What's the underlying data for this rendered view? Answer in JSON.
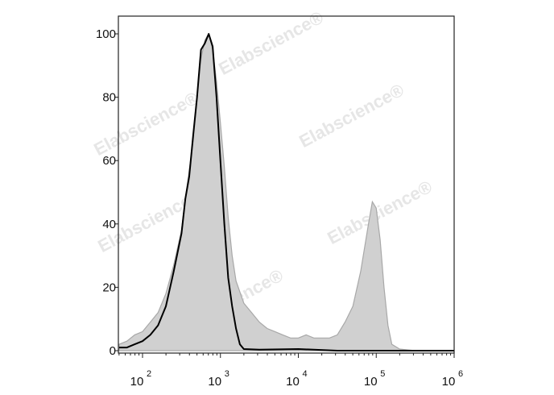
{
  "chart_data": {
    "type": "area",
    "title": "",
    "xlabel": "",
    "ylabel": "",
    "x_scale": "log",
    "xlim_log10": [
      1.69,
      6.0
    ],
    "ylim": [
      0,
      105
    ],
    "grid": false,
    "legend": "none",
    "y_ticks": [
      "0",
      "20",
      "40",
      "60",
      "80",
      "100"
    ],
    "y_tick_values": [
      0,
      20,
      40,
      60,
      80,
      100
    ],
    "x_ticks": [
      {
        "base": "10",
        "exp": "2",
        "value": 100
      },
      {
        "base": "10",
        "exp": "3",
        "value": 1000
      },
      {
        "base": "10",
        "exp": "4",
        "value": 10000
      },
      {
        "base": "10",
        "exp": "5",
        "value": 100000
      },
      {
        "base": "10",
        "exp": "6",
        "value": 1000000
      }
    ],
    "series": [
      {
        "style": "filled",
        "fill": "#d0d0d0",
        "stroke": "#a8a8a8",
        "x_log10": [
          1.7,
          1.8,
          1.9,
          2.0,
          2.1,
          2.2,
          2.3,
          2.4,
          2.5,
          2.55,
          2.6,
          2.65,
          2.7,
          2.75,
          2.8,
          2.85,
          2.9,
          2.95,
          3.0,
          3.05,
          3.1,
          3.15,
          3.2,
          3.3,
          3.4,
          3.5,
          3.6,
          3.7,
          3.8,
          3.9,
          4.0,
          4.1,
          4.2,
          4.3,
          4.4,
          4.5,
          4.6,
          4.7,
          4.8,
          4.9,
          4.95,
          5.0,
          5.05,
          5.1,
          5.15,
          5.2,
          5.3,
          5.5,
          6.0
        ],
        "y": [
          2,
          3,
          5,
          6,
          9,
          12,
          18,
          27,
          38,
          48,
          57,
          66,
          80,
          92,
          98,
          100,
          95,
          85,
          72,
          58,
          42,
          30,
          22,
          15,
          12,
          9,
          7,
          6,
          5,
          4,
          4,
          5,
          4,
          4,
          4,
          5,
          9,
          14,
          25,
          40,
          47,
          45,
          35,
          20,
          8,
          2,
          0.5,
          0,
          0
        ]
      },
      {
        "style": "line",
        "stroke": "#000000",
        "x_log10": [
          1.7,
          1.8,
          1.9,
          2.0,
          2.1,
          2.2,
          2.3,
          2.4,
          2.5,
          2.55,
          2.6,
          2.65,
          2.7,
          2.75,
          2.8,
          2.85,
          2.9,
          2.95,
          3.0,
          3.05,
          3.1,
          3.15,
          3.2,
          3.25,
          3.3,
          3.5,
          4.0,
          4.5,
          6.0
        ],
        "y": [
          1,
          1,
          2,
          3,
          5,
          8,
          14,
          25,
          37,
          48,
          55,
          68,
          80,
          95,
          97,
          100,
          96,
          80,
          60,
          40,
          23,
          14,
          7,
          2,
          0.5,
          0.3,
          0.5,
          0,
          0
        ]
      }
    ],
    "watermark": "Elabscience®"
  }
}
